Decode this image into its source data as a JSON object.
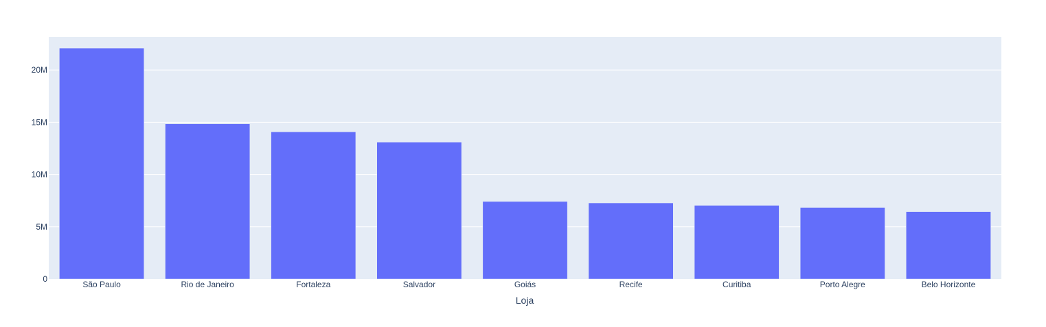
{
  "chart_data": {
    "type": "bar",
    "title": "",
    "xlabel": "Loja",
    "ylabel": "",
    "categories": [
      "São Paulo",
      "Rio de Janeiro",
      "Fortaleza",
      "Salvador",
      "Goiás",
      "Recife",
      "Curitiba",
      "Porto Alegre",
      "Belo Horizonte"
    ],
    "values": [
      22100000,
      14850000,
      14080000,
      13100000,
      7420000,
      7280000,
      7050000,
      6850000,
      6450000
    ],
    "ylim": [
      0,
      23160000
    ],
    "yticks": [
      0,
      5000000,
      10000000,
      15000000,
      20000000
    ],
    "ytick_labels": [
      "0",
      "5M",
      "10M",
      "15M",
      "20M"
    ],
    "grid": true,
    "colors": {
      "bar": "#636efa",
      "plot_bg": "#e5ecf6",
      "grid": "#ffffff",
      "text": "#2a3f5f"
    }
  }
}
